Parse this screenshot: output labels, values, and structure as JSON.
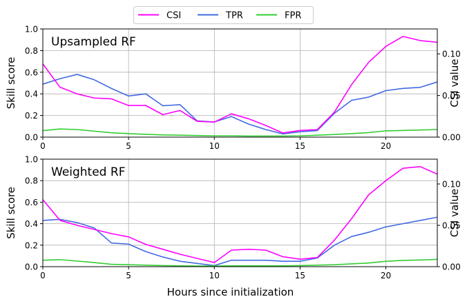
{
  "legend": {
    "items": [
      {
        "label": "CSI",
        "color": "#ff00ff"
      },
      {
        "label": "TPR",
        "color": "#4169e1"
      },
      {
        "label": "FPR",
        "color": "#32cd32"
      }
    ]
  },
  "chart_data": [
    {
      "type": "line",
      "title": "Upsampled RF",
      "xlabel": "",
      "ylabel": "Skill score",
      "y2label": "CSI value",
      "xlim": [
        0,
        23
      ],
      "ylim": [
        0,
        1.0
      ],
      "y2lim": [
        0,
        0.13
      ],
      "xticks": [
        0,
        5,
        10,
        15,
        20
      ],
      "yticks": [
        0.0,
        0.2,
        0.4,
        0.6,
        0.8,
        1.0
      ],
      "y2ticks": [
        0.0,
        0.05,
        0.1
      ],
      "grid": true,
      "x": [
        0,
        1,
        2,
        3,
        4,
        5,
        6,
        7,
        8,
        9,
        10,
        11,
        12,
        13,
        14,
        15,
        16,
        17,
        18,
        19,
        20,
        21,
        22,
        23
      ],
      "series": [
        {
          "name": "CSI",
          "axis": "right",
          "color": "#ff00ff",
          "values": [
            0.088,
            0.06,
            0.052,
            0.047,
            0.046,
            0.038,
            0.038,
            0.027,
            0.032,
            0.019,
            0.018,
            0.028,
            0.022,
            0.014,
            0.005,
            0.008,
            0.009,
            0.03,
            0.063,
            0.09,
            0.109,
            0.121,
            0.116,
            0.114
          ]
        },
        {
          "name": "TPR",
          "axis": "left",
          "color": "#4169e1",
          "values": [
            0.49,
            0.54,
            0.58,
            0.53,
            0.45,
            0.38,
            0.4,
            0.29,
            0.3,
            0.15,
            0.14,
            0.19,
            0.12,
            0.07,
            0.03,
            0.05,
            0.06,
            0.22,
            0.34,
            0.37,
            0.43,
            0.45,
            0.46,
            0.51
          ]
        },
        {
          "name": "FPR",
          "axis": "left",
          "color": "#32cd32",
          "values": [
            0.06,
            0.075,
            0.07,
            0.055,
            0.04,
            0.032,
            0.026,
            0.02,
            0.018,
            0.015,
            0.012,
            0.012,
            0.01,
            0.01,
            0.01,
            0.012,
            0.018,
            0.024,
            0.032,
            0.042,
            0.058,
            0.062,
            0.066,
            0.07
          ]
        }
      ]
    },
    {
      "type": "line",
      "title": "Weighted RF",
      "xlabel": "Hours since initialization",
      "ylabel": "Skill score",
      "y2label": "CSI value",
      "xlim": [
        0,
        23
      ],
      "ylim": [
        0,
        1.0
      ],
      "y2lim": [
        0,
        0.13
      ],
      "xticks": [
        0,
        5,
        10,
        15,
        20
      ],
      "yticks": [
        0.0,
        0.2,
        0.4,
        0.6,
        0.8,
        1.0
      ],
      "y2ticks": [
        0.0,
        0.05,
        0.1
      ],
      "grid": true,
      "x": [
        0,
        1,
        2,
        3,
        4,
        5,
        6,
        7,
        8,
        9,
        10,
        11,
        12,
        13,
        14,
        15,
        16,
        17,
        18,
        19,
        20,
        21,
        22,
        23
      ],
      "series": [
        {
          "name": "CSI",
          "axis": "right",
          "color": "#ff00ff",
          "values": [
            0.081,
            0.056,
            0.05,
            0.045,
            0.04,
            0.036,
            0.027,
            0.021,
            0.015,
            0.01,
            0.005,
            0.02,
            0.021,
            0.02,
            0.012,
            0.009,
            0.011,
            0.032,
            0.058,
            0.087,
            0.104,
            0.119,
            0.121,
            0.112
          ]
        },
        {
          "name": "TPR",
          "axis": "left",
          "color": "#4169e1",
          "values": [
            0.43,
            0.44,
            0.41,
            0.36,
            0.22,
            0.21,
            0.14,
            0.09,
            0.05,
            0.03,
            0.01,
            0.06,
            0.06,
            0.06,
            0.05,
            0.05,
            0.08,
            0.2,
            0.28,
            0.32,
            0.37,
            0.4,
            0.43,
            0.46
          ]
        },
        {
          "name": "FPR",
          "axis": "left",
          "color": "#32cd32",
          "values": [
            0.06,
            0.065,
            0.052,
            0.038,
            0.022,
            0.018,
            0.014,
            0.01,
            0.008,
            0.006,
            0.006,
            0.008,
            0.008,
            0.008,
            0.008,
            0.01,
            0.014,
            0.018,
            0.026,
            0.034,
            0.05,
            0.058,
            0.062,
            0.068
          ]
        }
      ]
    }
  ]
}
